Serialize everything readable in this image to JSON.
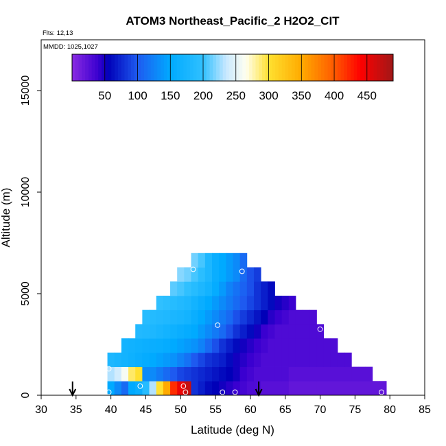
{
  "chart_data": {
    "type": "heatmap",
    "title": "ATOM3 Northeast_Pacific_2 H2O2_CIT",
    "annotations": {
      "flights": "Flts: 12,13",
      "dates": "MMDD: 1025,1027"
    },
    "xlabel": "Latitude (deg N)",
    "ylabel": "Altitude (m)",
    "xlim": [
      30,
      85
    ],
    "ylim": [
      0,
      17500
    ],
    "xticks": [
      30,
      35,
      40,
      45,
      50,
      55,
      60,
      65,
      70,
      75,
      80,
      85
    ],
    "yticks": [
      0,
      5000,
      10000,
      15000
    ],
    "colorbar": {
      "range": [
        0,
        490
      ],
      "ticks": [
        50,
        100,
        150,
        200,
        250,
        300,
        350,
        400,
        450
      ],
      "stops": [
        [
          0,
          "#8a2be2"
        ],
        [
          40,
          "#3a00d0"
        ],
        [
          55,
          "#0000b8"
        ],
        [
          100,
          "#1e5af0"
        ],
        [
          150,
          "#00aaff"
        ],
        [
          200,
          "#30c0ff"
        ],
        [
          235,
          "#c8e8ff"
        ],
        [
          265,
          "#fffff0"
        ],
        [
          300,
          "#ffe030"
        ],
        [
          350,
          "#ffaa00"
        ],
        [
          400,
          "#ff5a00"
        ],
        [
          440,
          "#ff0000"
        ],
        [
          490,
          "#a01818"
        ]
      ]
    },
    "cell_size": {
      "lat": 1,
      "alt": 700
    },
    "rows": [
      {
        "alt": 0,
        "lat_start": 39.5,
        "values": [
          150,
          130,
          110,
          150,
          160,
          190,
          230,
          300,
          350,
          420,
          450,
          470,
          80,
          70,
          60,
          55,
          50,
          45,
          40,
          35,
          30,
          30,
          25,
          25,
          25,
          25,
          20,
          20,
          20,
          20,
          20,
          20,
          20,
          20,
          20,
          20,
          20,
          20,
          20,
          20
        ]
      },
      {
        "alt": 700,
        "lat_start": 39.5,
        "values": [
          230,
          240,
          260,
          290,
          300,
          130,
          130,
          120,
          110,
          100,
          90,
          85,
          80,
          75,
          70,
          65,
          60,
          55,
          50,
          40,
          35,
          30,
          30,
          30,
          30,
          30,
          25,
          25,
          25,
          25,
          25,
          25,
          25,
          25,
          25,
          25,
          25,
          25
        ]
      },
      {
        "alt": 1400,
        "lat_start": 39.5,
        "values": [
          180,
          175,
          170,
          165,
          160,
          155,
          150,
          145,
          140,
          135,
          125,
          115,
          100,
          90,
          80,
          75,
          70,
          60,
          50,
          45,
          40,
          35,
          30,
          30,
          30,
          30,
          30,
          30,
          30,
          30,
          30,
          30,
          30,
          30,
          30
        ]
      },
      {
        "alt": 2100,
        "lat_start": 41.5,
        "values": [
          170,
          168,
          165,
          162,
          160,
          158,
          155,
          150,
          145,
          140,
          135,
          125,
          110,
          95,
          80,
          70,
          60,
          50,
          45,
          40,
          35,
          30,
          30,
          30,
          30,
          30,
          30,
          30,
          30,
          30,
          30
        ]
      },
      {
        "alt": 2800,
        "lat_start": 43.5,
        "values": [
          185,
          182,
          180,
          175,
          170,
          165,
          160,
          155,
          150,
          140,
          130,
          120,
          110,
          95,
          80,
          70,
          60,
          50,
          40,
          35,
          30,
          30,
          30,
          30,
          30,
          30,
          30
        ]
      },
      {
        "alt": 3500,
        "lat_start": 44.5,
        "values": [
          190,
          188,
          185,
          182,
          178,
          175,
          170,
          160,
          150,
          140,
          130,
          120,
          110,
          95,
          85,
          75,
          65,
          55,
          45,
          40,
          35,
          30,
          30,
          30,
          30
        ]
      },
      {
        "alt": 4200,
        "lat_start": 46.5,
        "values": [
          200,
          195,
          190,
          185,
          180,
          170,
          160,
          150,
          140,
          130,
          120,
          110,
          100,
          90,
          80,
          70,
          60,
          50,
          45,
          40
        ]
      },
      {
        "alt": 4900,
        "lat_start": 48.5,
        "values": [
          210,
          205,
          200,
          190,
          180,
          170,
          155,
          140,
          125,
          115,
          105,
          95,
          80,
          70,
          60
        ]
      },
      {
        "alt": 5600,
        "lat_start": 49.5,
        "values": [
          220,
          215,
          205,
          195,
          180,
          160,
          150,
          140,
          130,
          110,
          95,
          85
        ]
      },
      {
        "alt": 6300,
        "lat_start": 51.5,
        "values": [
          215,
          205,
          180,
          160,
          150,
          140,
          130,
          110
        ]
      }
    ],
    "samples": [
      {
        "lat": 39.7,
        "alt": 150
      },
      {
        "lat": 44.2,
        "alt": 450
      },
      {
        "lat": 50.4,
        "alt": 450
      },
      {
        "lat": 50.7,
        "alt": 150
      },
      {
        "lat": 56.0,
        "alt": 150
      },
      {
        "lat": 57.8,
        "alt": 150
      },
      {
        "lat": 78.8,
        "alt": 150
      },
      {
        "lat": 39.7,
        "alt": 1300
      },
      {
        "lat": 55.3,
        "alt": 3450
      },
      {
        "lat": 70.0,
        "alt": 3250
      },
      {
        "lat": 51.8,
        "alt": 6200
      },
      {
        "lat": 58.8,
        "alt": 6100
      }
    ],
    "arrows": [
      {
        "lat": 34.5
      },
      {
        "lat": 61.2
      }
    ]
  }
}
